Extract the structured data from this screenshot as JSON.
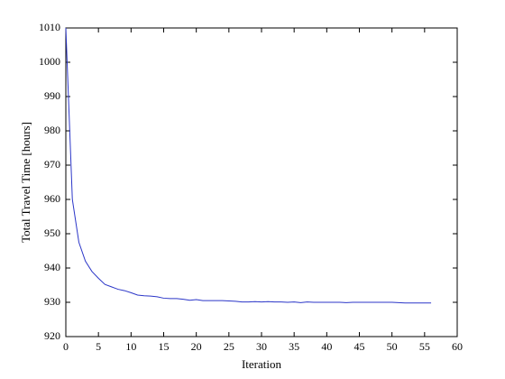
{
  "chart_data": {
    "type": "line",
    "x_label": "Iteration",
    "y_label": "Total Travel Time [hours]",
    "x": [
      0,
      1,
      2,
      3,
      4,
      5,
      6,
      7,
      8,
      9,
      10,
      11,
      12,
      13,
      14,
      15,
      16,
      17,
      18,
      19,
      20,
      21,
      22,
      23,
      24,
      25,
      26,
      27,
      28,
      29,
      30,
      31,
      32,
      33,
      34,
      35,
      36,
      37,
      38,
      39,
      40,
      41,
      42,
      43,
      44,
      45,
      46,
      47,
      48,
      49,
      50,
      51,
      52,
      53,
      54,
      55,
      56
    ],
    "series": [
      {
        "color": "#2b36c8",
        "values": [
          1010,
          960,
          947.5,
          942,
          939,
          937,
          935.2,
          934.5,
          933.8,
          933.4,
          932.8,
          932.1,
          931.9,
          931.8,
          931.6,
          931.2,
          931.1,
          931.1,
          930.9,
          930.6,
          930.8,
          930.5,
          930.5,
          930.5,
          930.5,
          930.4,
          930.3,
          930.1,
          930.1,
          930.2,
          930.1,
          930.2,
          930.1,
          930.1,
          930.0,
          930.1,
          929.9,
          930.1,
          930.0,
          930.0,
          930.0,
          930.0,
          930.0,
          929.9,
          930.0,
          930.0,
          930.0,
          930.0,
          930.0,
          930.0,
          930.0,
          929.9,
          929.8,
          929.8,
          929.8,
          929.8,
          929.8
        ]
      }
    ],
    "xlim": [
      0,
      60
    ],
    "xticks": [
      0,
      5,
      10,
      15,
      20,
      25,
      30,
      35,
      40,
      45,
      50,
      55,
      60
    ],
    "ylim": [
      920,
      1010
    ],
    "yticks": [
      920,
      930,
      940,
      950,
      960,
      970,
      980,
      990,
      1000,
      1010
    ],
    "grid": false
  }
}
